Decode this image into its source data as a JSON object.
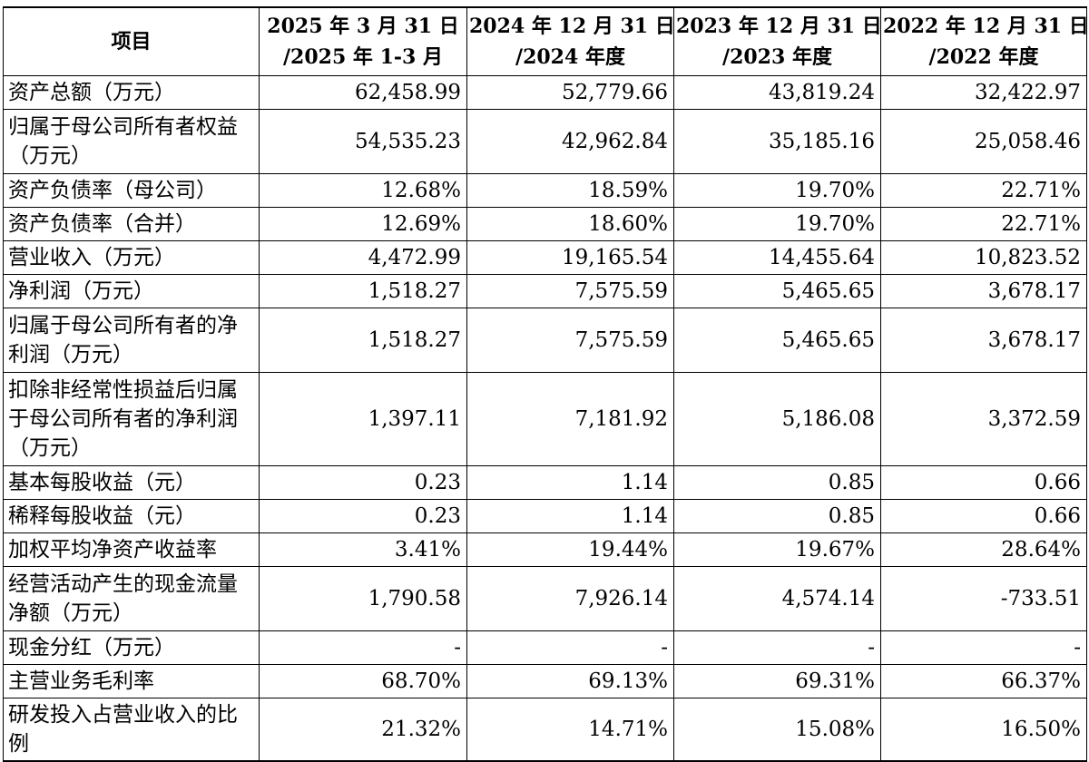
{
  "table": {
    "headers": [
      {
        "lines": [
          "项目"
        ]
      },
      {
        "lines": [
          "2025 年 3 月 31 日",
          "/2025 年 1-3 月"
        ]
      },
      {
        "lines": [
          "2024 年 12 月 31 日",
          "/2024 年度"
        ]
      },
      {
        "lines": [
          "2023 年 12 月 31 日",
          "/2023 年度"
        ]
      },
      {
        "lines": [
          "2022 年 12 月 31 日",
          "/2022 年度"
        ]
      }
    ],
    "rows": [
      {
        "label": "资产总额（万元）",
        "values": [
          "62,458.99",
          "52,779.66",
          "43,819.24",
          "32,422.97"
        ]
      },
      {
        "label": "归属于母公司所有者权益（万元）",
        "values": [
          "54,535.23",
          "42,962.84",
          "35,185.16",
          "25,058.46"
        ]
      },
      {
        "label": "资产负债率（母公司）",
        "values": [
          "12.68%",
          "18.59%",
          "19.70%",
          "22.71%"
        ]
      },
      {
        "label": "资产负债率（合并）",
        "values": [
          "12.69%",
          "18.60%",
          "19.70%",
          "22.71%"
        ]
      },
      {
        "label": "营业收入（万元）",
        "values": [
          "4,472.99",
          "19,165.54",
          "14,455.64",
          "10,823.52"
        ]
      },
      {
        "label": "净利润（万元）",
        "values": [
          "1,518.27",
          "7,575.59",
          "5,465.65",
          "3,678.17"
        ]
      },
      {
        "label": "归属于母公司所有者的净利润（万元）",
        "values": [
          "1,518.27",
          "7,575.59",
          "5,465.65",
          "3,678.17"
        ]
      },
      {
        "label": "扣除非经常性损益后归属于母公司所有者的净利润（万元）",
        "values": [
          "1,397.11",
          "7,181.92",
          "5,186.08",
          "3,372.59"
        ]
      },
      {
        "label": "基本每股收益（元）",
        "values": [
          "0.23",
          "1.14",
          "0.85",
          "0.66"
        ]
      },
      {
        "label": "稀释每股收益（元）",
        "values": [
          "0.23",
          "1.14",
          "0.85",
          "0.66"
        ]
      },
      {
        "label": "加权平均净资产收益率",
        "values": [
          "3.41%",
          "19.44%",
          "19.67%",
          "28.64%"
        ]
      },
      {
        "label": "经营活动产生的现金流量净额（万元）",
        "values": [
          "1,790.58",
          "7,926.14",
          "4,574.14",
          "-733.51"
        ]
      },
      {
        "label": "现金分红（万元）",
        "values": [
          "-",
          "-",
          "-",
          "-"
        ]
      },
      {
        "label": "主营业务毛利率",
        "values": [
          "68.70%",
          "69.13%",
          "69.31%",
          "66.37%"
        ]
      },
      {
        "label": "研发投入占营业收入的比例",
        "values": [
          "21.32%",
          "14.71%",
          "15.08%",
          "16.50%"
        ]
      }
    ]
  }
}
